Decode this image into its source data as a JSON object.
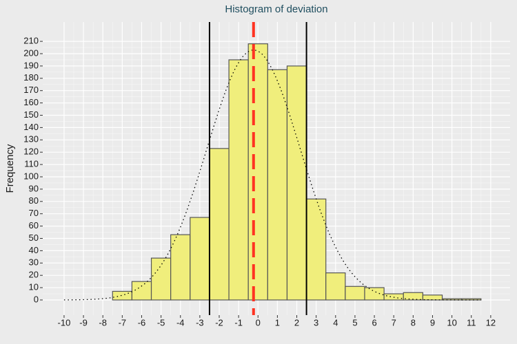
{
  "chart_data": {
    "type": "histogram",
    "title": "Histogram of deviation",
    "y_label": "Frequency",
    "bins": [
      -7.5,
      -6.5,
      -5.5,
      -4.5,
      -3.5,
      -2.5,
      -1.5,
      -0.5,
      0.5,
      1.5,
      2.5,
      3.5,
      4.5,
      5.5,
      6.5,
      7.5,
      8.5,
      9.5,
      10.5,
      11.5
    ],
    "values": [
      7,
      15,
      34,
      53,
      67,
      123,
      195,
      208,
      187,
      190,
      82,
      22,
      11,
      10,
      5,
      6,
      4,
      1,
      1
    ],
    "color": "#f0ee7c",
    "edge_color": "#555555",
    "xlim": [
      -11.1,
      13
    ],
    "ylim": [
      -12.3,
      225.7
    ],
    "xticks": [
      -10,
      -9,
      -8,
      -7,
      -6,
      -5,
      -4,
      -3,
      -2,
      -1,
      0,
      1,
      2,
      3,
      4,
      5,
      6,
      7,
      8,
      9,
      10,
      11,
      12
    ],
    "yticks": [
      0,
      10,
      20,
      30,
      40,
      50,
      60,
      70,
      80,
      90,
      100,
      110,
      120,
      130,
      140,
      150,
      160,
      170,
      180,
      190,
      200,
      210
    ],
    "grid": true,
    "vlines": [
      {
        "value": -2.5,
        "color": "#000000",
        "style": "solid"
      },
      {
        "value": 2.5,
        "color": "#000000",
        "style": "solid"
      },
      {
        "value": -0.23,
        "color": "#ff3322",
        "style": "dashed"
      }
    ],
    "curve": {
      "mean": -0.23,
      "sd": 2.4,
      "from": -10,
      "to": 11.5
    }
  }
}
